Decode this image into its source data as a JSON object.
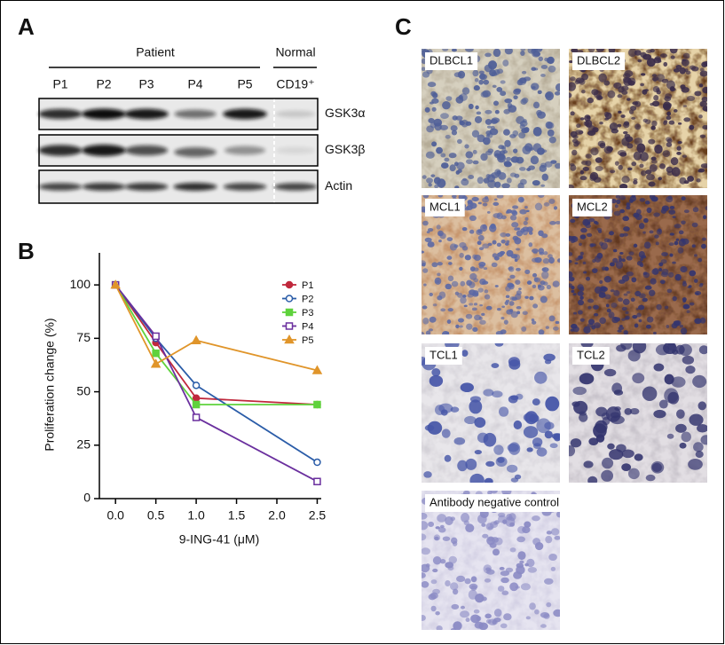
{
  "panel_a": {
    "label": "A",
    "group_labels": [
      "Patient",
      "Normal"
    ],
    "lanes": [
      "P1",
      "P2",
      "P3",
      "P4",
      "P5",
      "CD19⁺"
    ],
    "rows": [
      "GSK3α",
      "GSK3β",
      "Actin"
    ]
  },
  "chart_data": {
    "panel_label": "B",
    "type": "line",
    "x_label": "9-ING-41 (μM)",
    "y_label": "Proliferation change (%)",
    "x": [
      0,
      0.5,
      1,
      2.5
    ],
    "series": [
      {
        "name": "P1",
        "color": "#c0283c",
        "marker": "circle",
        "values": [
          100,
          73,
          47,
          44
        ]
      },
      {
        "name": "P2",
        "color": "#2a5ca8",
        "marker": "open-circle",
        "values": [
          100,
          75,
          53,
          17
        ]
      },
      {
        "name": "P3",
        "color": "#5fd23c",
        "marker": "square",
        "values": [
          100,
          68,
          44,
          44
        ]
      },
      {
        "name": "P4",
        "color": "#6a2f9e",
        "marker": "open-square",
        "values": [
          100,
          76,
          38,
          8
        ]
      },
      {
        "name": "P5",
        "color": "#e0952a",
        "marker": "triangle",
        "values": [
          100,
          63,
          74,
          60
        ]
      }
    ],
    "xlim": [
      -0.2,
      2.55
    ],
    "ylim": [
      0,
      115
    ],
    "xticks": [
      {
        "value": 0,
        "label": "0.0"
      },
      0.5,
      {
        "value": 1,
        "label": "1.0"
      },
      1.5,
      {
        "value": 2,
        "label": "2.0"
      },
      2.5
    ],
    "yticks": [
      0,
      25,
      50,
      75,
      100
    ],
    "legend": "upper right"
  },
  "panel_c": {
    "label": "C",
    "images": [
      {
        "label": "DLBCL1"
      },
      {
        "label": "DLBCL2"
      },
      {
        "label": "MCL1"
      },
      {
        "label": "MCL2"
      },
      {
        "label": "TCL1"
      },
      {
        "label": "TCL2"
      },
      {
        "label": "Antibody negative control"
      }
    ]
  }
}
